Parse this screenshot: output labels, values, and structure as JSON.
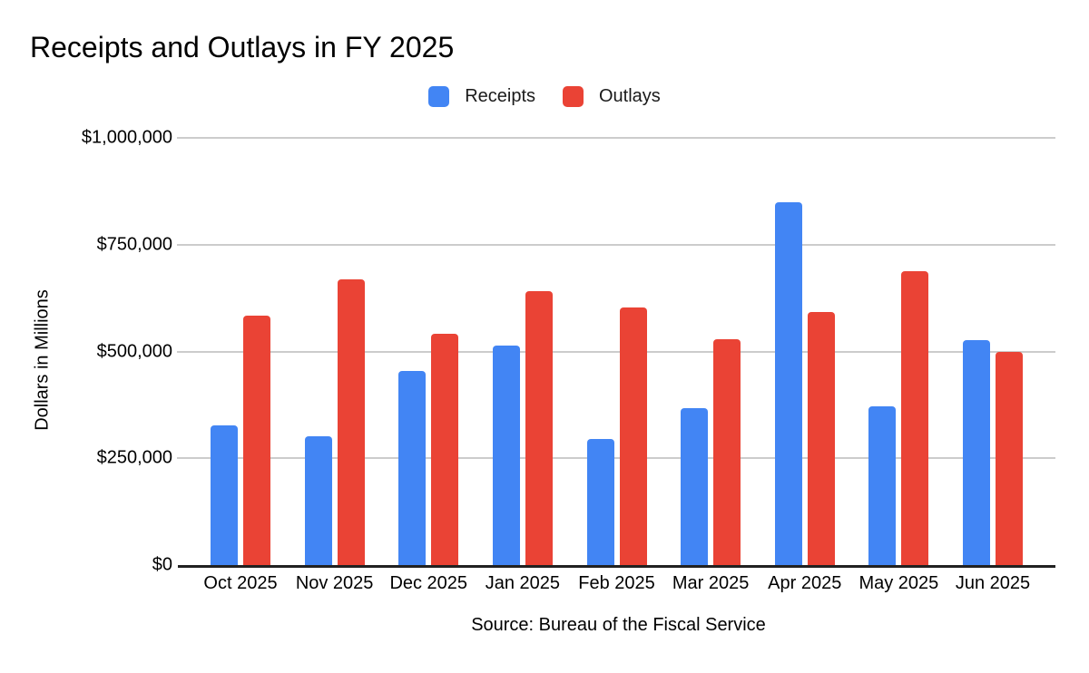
{
  "chart": {
    "title": "Receipts and Outlays in FY 2025",
    "legend": [
      {
        "label": "Receipts",
        "color": "#4285F4"
      },
      {
        "label": "Outlays",
        "color": "#EA4335"
      }
    ],
    "y_axis": {
      "label": "Dollars in Millions",
      "ticks": [
        "$1,000,000",
        "$750,000",
        "$500,000",
        "$250,000",
        "$0"
      ]
    },
    "source": "Source: Bureau of the Fiscal Service",
    "colors": {
      "grid": "#cccccc",
      "axis": "#212121",
      "background": "#ffffff",
      "text": "#000000"
    }
  },
  "chart_data": {
    "type": "bar",
    "title": "Receipts and Outlays in FY 2025",
    "categories": [
      "Oct 2025",
      "Nov 2025",
      "Dec 2025",
      "Jan 2025",
      "Feb 2025",
      "Mar 2025",
      "Apr 2025",
      "May 2025",
      "Jun 2025"
    ],
    "series": [
      {
        "name": "Receipts",
        "color": "#4285F4",
        "values": [
          327000,
          302000,
          455000,
          513000,
          296000,
          368000,
          850000,
          371000,
          526000
        ]
      },
      {
        "name": "Outlays",
        "color": "#EA4335",
        "values": [
          584000,
          668000,
          541000,
          642000,
          603000,
          528000,
          592000,
          687000,
          499000
        ]
      }
    ],
    "xlabel": "",
    "ylabel": "Dollars in Millions",
    "ylim": [
      0,
      1000000
    ],
    "ytick_step": 250000,
    "grid": true,
    "legend_position": "top",
    "source": "Source: Bureau of the Fiscal Service"
  }
}
